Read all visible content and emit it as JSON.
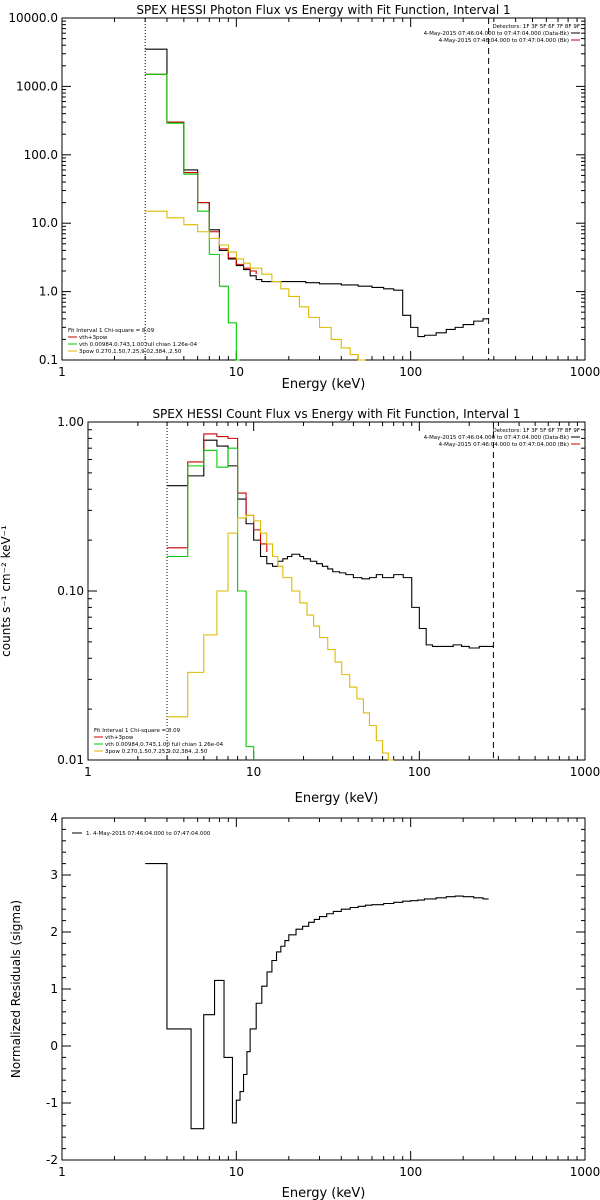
{
  "chart_data": [
    {
      "type": "line",
      "title": "SPEX HESSI Photon Flux vs Energy with Fit Function, Interval 1",
      "xlabel": "Energy (keV)",
      "ylabel": "",
      "xscale": "log",
      "yscale": "log",
      "xlim": [
        1,
        1000
      ],
      "ylim": [
        0.1,
        10000
      ],
      "xticks": [
        1,
        10,
        100,
        1000
      ],
      "xtick_labels": [
        "1",
        "10",
        "100",
        "1000"
      ],
      "yticks": [
        0.1,
        1,
        10,
        100,
        1000,
        10000
      ],
      "ytick_labels": [
        "0.1",
        "1.0",
        "10.0",
        "100.0",
        "1000.0",
        "10000.0"
      ],
      "markers": [
        {
          "x": 3,
          "style": "dotted"
        },
        {
          "x": 280,
          "style": "dashed"
        }
      ],
      "detectors": "Detectors: 1F 3F 5F 6F 7F 8F 9F",
      "header_entries": [
        {
          "text": "4-May-2015 07:46:04.000 to 07:47:04.000 (Data-Bk)",
          "color": "#000000"
        },
        {
          "text": "4-May-2015 07:46:04.000 to 07:47:04.000 (Bk)",
          "color": "#cc0000"
        }
      ],
      "legend_title": "Fit Interval 1   Chi-square = 8.09",
      "legend_entries": [
        {
          "text": "vth+3pow",
          "color": "#cc0000"
        },
        {
          "text": "vth 0.00984,0.743,1.00  full chian 1.26e-04",
          "color": "#00cc00"
        },
        {
          "text": "3pow 0.270,1.50,7.25,9.02,384.,2.50",
          "color": "#ddbb00"
        }
      ],
      "series": [
        {
          "name": "",
          "color": "#000000",
          "x": [
            3,
            3.5,
            4,
            4.5,
            5,
            5.5,
            6,
            6.5,
            7,
            7.5,
            8,
            8.5,
            9,
            9.5,
            10,
            11,
            12,
            13,
            14,
            15,
            17,
            20,
            25,
            30,
            40,
            50,
            60,
            70,
            80,
            90,
            100,
            110,
            120,
            140,
            160,
            180,
            200,
            230,
            260,
            280
          ],
          "y": [
            3500,
            3500,
            300,
            300,
            60,
            60,
            20,
            20,
            8,
            8,
            4,
            4,
            3,
            3,
            2.4,
            2.1,
            1.7,
            1.5,
            1.4,
            1.4,
            1.4,
            1.4,
            1.35,
            1.3,
            1.25,
            1.2,
            1.15,
            1.1,
            1.05,
            0.45,
            0.3,
            0.22,
            0.23,
            0.25,
            0.28,
            0.3,
            0.33,
            0.37,
            0.4,
            0.4
          ]
        },
        {
          "name": "",
          "color": "#cc0000",
          "x": [
            3,
            3.5,
            4,
            4.5,
            5,
            5.5,
            6,
            6.5,
            7,
            7.5,
            8,
            8.5,
            9,
            9.5,
            10,
            11,
            12,
            13
          ],
          "y": [
            1500,
            1500,
            300,
            300,
            55,
            55,
            20,
            20,
            7.5,
            7.5,
            4.2,
            4.2,
            3.1,
            3.1,
            2.5,
            2.2,
            2.0,
            1.8
          ]
        },
        {
          "name": "",
          "color": "#00cc00",
          "x": [
            3,
            3.5,
            4,
            4.5,
            5,
            5.5,
            6,
            6.5,
            7,
            7.5,
            8,
            8.5,
            9,
            9.5,
            10,
            10.5
          ],
          "y": [
            1500,
            1500,
            290,
            290,
            52,
            52,
            15,
            15,
            3.5,
            3.5,
            1.2,
            1.2,
            0.35,
            0.35,
            0.1,
            0.1
          ]
        },
        {
          "name": "",
          "color": "#ddbb00",
          "x": [
            3,
            3.5,
            4,
            4.5,
            5,
            5.5,
            6,
            6.5,
            7,
            7.5,
            8,
            8.5,
            9,
            9.5,
            10,
            11,
            12,
            14,
            16,
            18,
            20,
            23,
            26,
            30,
            35,
            40,
            45,
            50,
            55
          ],
          "y": [
            15,
            15,
            12,
            12,
            9.5,
            9.5,
            7.5,
            7.5,
            6,
            6,
            4.8,
            4.8,
            3.8,
            3.8,
            3.0,
            2.6,
            2.2,
            1.8,
            1.4,
            1.1,
            0.85,
            0.6,
            0.42,
            0.3,
            0.2,
            0.15,
            0.12,
            0.1,
            0.1
          ]
        }
      ]
    },
    {
      "type": "line",
      "title": "SPEX HESSI Count Flux vs Energy with Fit Function, Interval 1",
      "xlabel": "Energy (keV)",
      "ylabel": "counts s⁻¹ cm⁻² keV⁻¹",
      "xscale": "log",
      "yscale": "log",
      "xlim": [
        1,
        1000
      ],
      "ylim": [
        0.01,
        1
      ],
      "xticks": [
        1,
        10,
        100,
        1000
      ],
      "xtick_labels": [
        "1",
        "10",
        "100",
        "1000"
      ],
      "yticks": [
        0.01,
        0.1,
        1
      ],
      "ytick_labels": [
        "0.01",
        "0.10",
        "1.00"
      ],
      "markers": [
        {
          "x": 3,
          "style": "dotted"
        },
        {
          "x": 280,
          "style": "dashed"
        }
      ],
      "detectors": "Detectors: 1F 3F 5F 6F 7F 8F 9F",
      "header_entries": [
        {
          "text": "4-May-2015 07:46:04.000 to 07:47:04.000 (Data-Bk)",
          "color": "#000000"
        },
        {
          "text": "4-May-2015 07:46:04.000 to 07:47:04.000 (Bk)",
          "color": "#cc0000"
        }
      ],
      "legend_title": "Fit Interval 1   Chi-square = 8.09",
      "legend_entries": [
        {
          "text": "vth+3pow",
          "color": "#cc0000"
        },
        {
          "text": "vth 0.00984,0.743,1.00  full chian 1.26e-04",
          "color": "#00cc00"
        },
        {
          "text": "3pow 0.270,1.50,7.25,9.02,384.,2.50",
          "color": "#ddbb00"
        }
      ],
      "series": [
        {
          "name": "",
          "color": "#000000",
          "x": [
            3,
            3.5,
            4,
            4.5,
            5,
            5.5,
            6,
            6.5,
            7,
            7.5,
            8,
            8.5,
            9,
            9.5,
            10,
            11,
            12,
            13,
            14,
            15,
            16,
            17,
            18,
            19,
            20,
            22,
            24,
            26,
            28,
            30,
            33,
            36,
            40,
            45,
            50,
            55,
            60,
            70,
            80,
            90,
            100,
            110,
            120,
            140,
            160,
            180,
            200,
            230,
            260,
            280
          ],
          "y": [
            0.42,
            0.42,
            0.48,
            0.48,
            0.78,
            0.78,
            0.72,
            0.72,
            0.55,
            0.55,
            0.35,
            0.35,
            0.25,
            0.25,
            0.2,
            0.16,
            0.145,
            0.14,
            0.15,
            0.155,
            0.16,
            0.165,
            0.165,
            0.16,
            0.155,
            0.15,
            0.145,
            0.14,
            0.135,
            0.13,
            0.128,
            0.125,
            0.12,
            0.118,
            0.12,
            0.125,
            0.12,
            0.125,
            0.12,
            0.08,
            0.06,
            0.048,
            0.047,
            0.047,
            0.048,
            0.047,
            0.046,
            0.047,
            0.047,
            0.047
          ]
        },
        {
          "name": "",
          "color": "#cc0000",
          "x": [
            3,
            3.5,
            4,
            4.5,
            5,
            5.5,
            6,
            6.5,
            7,
            7.5,
            8,
            8.5,
            9,
            9.5,
            10,
            11,
            12
          ],
          "y": [
            0.18,
            0.18,
            0.58,
            0.58,
            0.85,
            0.85,
            0.82,
            0.82,
            0.8,
            0.8,
            0.38,
            0.38,
            0.28,
            0.28,
            0.23,
            0.19,
            0.17
          ]
        },
        {
          "name": "",
          "color": "#00cc00",
          "x": [
            3,
            3.5,
            4,
            4.5,
            5,
            5.5,
            6,
            6.5,
            7,
            7.5,
            8,
            8.5,
            9,
            9.5,
            10
          ],
          "y": [
            0.16,
            0.16,
            0.55,
            0.55,
            0.68,
            0.68,
            0.54,
            0.54,
            0.7,
            0.7,
            0.1,
            0.1,
            0.012,
            0.012,
            0.01
          ]
        },
        {
          "name": "",
          "color": "#ddbb00",
          "x": [
            3,
            3.5,
            4,
            4.5,
            5,
            5.5,
            6,
            6.5,
            7,
            7.5,
            8,
            8.5,
            9,
            9.5,
            10,
            11,
            12,
            13,
            14,
            15,
            17,
            19,
            21,
            23,
            25,
            28,
            31,
            34,
            38,
            42,
            46,
            50,
            55,
            60,
            65,
            70
          ],
          "y": [
            0.018,
            0.018,
            0.033,
            0.033,
            0.055,
            0.055,
            0.1,
            0.1,
            0.22,
            0.22,
            0.27,
            0.27,
            0.28,
            0.28,
            0.26,
            0.22,
            0.19,
            0.16,
            0.14,
            0.12,
            0.1,
            0.085,
            0.072,
            0.062,
            0.053,
            0.045,
            0.038,
            0.032,
            0.027,
            0.023,
            0.019,
            0.016,
            0.013,
            0.011,
            0.01,
            0.01
          ]
        }
      ]
    },
    {
      "type": "line",
      "title": "",
      "xlabel": "Energy (keV)",
      "ylabel": "Normalized Residuals (sigma)",
      "xscale": "log",
      "yscale": "linear",
      "xlim": [
        1,
        1000
      ],
      "ylim": [
        -2,
        4
      ],
      "xticks": [
        1,
        10,
        100,
        1000
      ],
      "xtick_labels": [
        "1",
        "10",
        "100",
        "1000"
      ],
      "yticks": [
        -2,
        -1,
        0,
        1,
        2,
        3,
        4
      ],
      "ytick_labels": [
        "-2",
        "-1",
        "0",
        "1",
        "2",
        "3",
        "4"
      ],
      "legend_entries": [
        {
          "text": "1. 4-May-2015 07:46:04.000 to 07:47:04.000",
          "color": "#000000"
        }
      ],
      "series": [
        {
          "name": "",
          "color": "#000000",
          "x": [
            3,
            3.5,
            4,
            4.5,
            5,
            5.5,
            6,
            6.5,
            7,
            7.5,
            8,
            8.5,
            9,
            9.5,
            10,
            10.5,
            11,
            11.5,
            12,
            13,
            14,
            15,
            16,
            17,
            18,
            19,
            20,
            22,
            24,
            26,
            28,
            30,
            33,
            36,
            40,
            45,
            50,
            55,
            60,
            70,
            80,
            90,
            100,
            110,
            120,
            140,
            160,
            180,
            200,
            230,
            260,
            280
          ],
          "y": [
            3.2,
            3.2,
            0.3,
            0.3,
            0.3,
            -1.45,
            -1.45,
            0.55,
            0.55,
            1.15,
            1.15,
            -0.2,
            -0.2,
            -1.35,
            -0.95,
            -0.8,
            -0.5,
            -0.1,
            0.3,
            0.75,
            1.05,
            1.3,
            1.5,
            1.65,
            1.75,
            1.85,
            1.95,
            2.05,
            2.1,
            2.17,
            2.22,
            2.27,
            2.32,
            2.36,
            2.4,
            2.43,
            2.45,
            2.47,
            2.48,
            2.5,
            2.52,
            2.54,
            2.55,
            2.56,
            2.58,
            2.6,
            2.62,
            2.63,
            2.62,
            2.6,
            2.58,
            2.58
          ]
        }
      ]
    }
  ]
}
